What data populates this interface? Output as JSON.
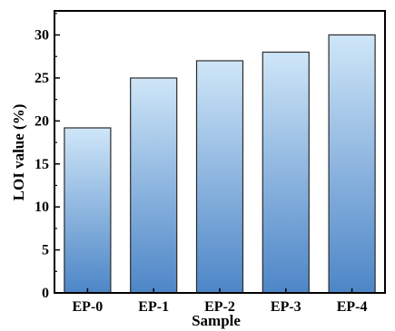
{
  "chart_data": {
    "type": "bar",
    "title": "",
    "xlabel": "Sample",
    "ylabel": "LOI value (%)",
    "categories": [
      "EP-0",
      "EP-1",
      "EP-2",
      "EP-3",
      "EP-4"
    ],
    "values": [
      19.2,
      25.0,
      27.0,
      28.0,
      30.0
    ],
    "ylim": [
      0,
      32.8
    ],
    "yticks": [
      0,
      5,
      10,
      15,
      20,
      25,
      30
    ],
    "grid": false,
    "legend": "none",
    "bar_gradient": {
      "top": "#cfe6f8",
      "bottom": "#4d86c7"
    },
    "bar_stroke": "#2b2b2b"
  }
}
